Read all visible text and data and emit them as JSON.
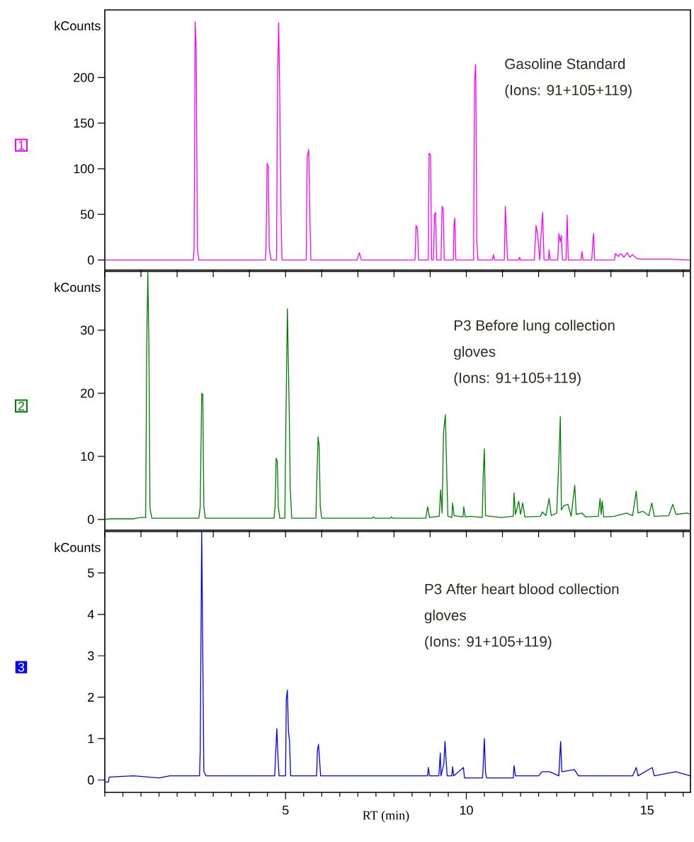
{
  "chart_data": [
    {
      "type": "line",
      "subtitle": "1",
      "ylabel": "kCounts",
      "annotations": [
        "Gasoline Standard",
        "(Ions: 91+105+119)"
      ],
      "xlim": [
        0,
        16.2
      ],
      "ylim": [
        -11,
        274
      ],
      "yticks": [
        0,
        50,
        100,
        150,
        200
      ],
      "tick_labels": "y",
      "series": [
        {
          "color": "#ff00ff",
          "x": [
            0,
            2.45,
            2.47,
            2.5,
            2.53,
            2.56,
            2.6,
            4.44,
            4.46,
            4.49,
            4.52,
            4.55,
            4.6,
            4.75,
            4.78,
            4.81,
            4.84,
            4.87,
            4.9,
            5.57,
            5.6,
            5.64,
            5.67,
            5.7,
            6.98,
            7.04,
            7.1,
            8.58,
            8.61,
            8.65,
            8.68,
            8.95,
            8.97,
            9.01,
            9.04,
            9.09,
            9.12,
            9.15,
            9.18,
            9.3,
            9.33,
            9.36,
            9.39,
            9.64,
            9.66,
            9.68,
            9.71,
            10.2,
            10.23,
            10.26,
            10.29,
            10.32,
            10.72,
            10.75,
            10.78,
            11.05,
            11.08,
            11.11,
            11.14,
            11.45,
            11.47,
            11.5,
            11.88,
            11.93,
            11.97,
            12.03,
            12.06,
            12.11,
            12.15,
            12.27,
            12.29,
            12.32,
            12.53,
            12.56,
            12.6,
            12.63,
            12.66,
            12.76,
            12.79,
            12.82,
            13.17,
            13.2,
            13.23,
            13.47,
            13.5,
            13.52,
            13.55,
            14.1,
            14.12,
            14.2,
            14.28,
            14.36,
            14.45,
            14.52,
            14.6,
            14.7,
            14.8,
            15.2,
            15.6,
            16.2
          ],
          "values": [
            0,
            0,
            13,
            261,
            227,
            13,
            0,
            0,
            13,
            106,
            103,
            13,
            0,
            0,
            202,
            260,
            178,
            61,
            0,
            0,
            113,
            121,
            55,
            0,
            0,
            8,
            0,
            0,
            38,
            34,
            0,
            0,
            117,
            115,
            0,
            0,
            50,
            52,
            0,
            0,
            59,
            56,
            0,
            0,
            38,
            46,
            0,
            0,
            198,
            214,
            20,
            0,
            0,
            6,
            0,
            0,
            59,
            29,
            0,
            0,
            3,
            0,
            0,
            38,
            29,
            0,
            23,
            52,
            0,
            0,
            11,
            0,
            0,
            29,
            20,
            27,
            0,
            0,
            49,
            0,
            0,
            9,
            0,
            0,
            20,
            29,
            0,
            0,
            7,
            4,
            7,
            3,
            8,
            3,
            6,
            2,
            1,
            1,
            1,
            0
          ]
        }
      ]
    },
    {
      "type": "line",
      "subtitle": "2",
      "ylabel": "kCounts",
      "annotations": [
        "P3 Before lung collection",
        "gloves",
        "(Ions: 91+105+119)"
      ],
      "xlim": [
        0,
        16.2
      ],
      "ylim": [
        -1.7,
        39.3
      ],
      "yticks": [
        0,
        10,
        20,
        30
      ],
      "tick_labels": "y",
      "series": [
        {
          "color": "#008000",
          "x": [
            0,
            0.15,
            0.8,
            1.0,
            1.13,
            1.16,
            1.19,
            1.22,
            1.25,
            1.3,
            2.6,
            2.64,
            2.68,
            2.71,
            2.74,
            2.78,
            4.68,
            4.71,
            4.74,
            4.77,
            4.8,
            4.84,
            4.98,
            5.01,
            5.05,
            5.1,
            5.13,
            5.17,
            5.84,
            5.87,
            5.9,
            5.93,
            5.96,
            6.0,
            7.4,
            7.43,
            7.47,
            7.9,
            7.93,
            7.96,
            8.88,
            8.93,
            8.98,
            9.25,
            9.29,
            9.33,
            9.37,
            9.42,
            9.45,
            9.49,
            9.6,
            9.62,
            9.66,
            9.91,
            9.93,
            9.97,
            10.1,
            10.44,
            10.47,
            10.5,
            10.53,
            10.96,
            11.3,
            11.32,
            11.36,
            11.45,
            11.5,
            11.56,
            11.62,
            12.05,
            12.1,
            12.2,
            12.29,
            12.35,
            12.5,
            12.57,
            12.6,
            12.63,
            12.7,
            12.81,
            12.9,
            13.0,
            13.04,
            13.2,
            13.3,
            13.65,
            13.7,
            13.73,
            13.76,
            13.8,
            14.1,
            14.43,
            14.6,
            14.7,
            14.75,
            14.88,
            15.05,
            15.13,
            15.2,
            15.6,
            15.71,
            15.8,
            16.11,
            16.2
          ],
          "values": [
            0,
            0.1,
            0.1,
            0.3,
            0.3,
            27.5,
            39.2,
            27.5,
            1.8,
            0.2,
            0.2,
            2,
            20,
            19.8,
            2,
            0.2,
            0.2,
            2,
            9.7,
            9.2,
            2,
            0.2,
            0.2,
            15.7,
            33.4,
            17.6,
            4.9,
            0.2,
            0.2,
            7.3,
            13.1,
            11.5,
            2,
            0.2,
            0.2,
            0.4,
            0.2,
            0.2,
            0.4,
            0.2,
            0.2,
            2.0,
            0.3,
            0.5,
            4.7,
            1,
            13.8,
            16.6,
            9.4,
            0.5,
            0.3,
            2.6,
            0.6,
            0.4,
            2.0,
            0.4,
            0.5,
            0.3,
            7.5,
            11.2,
            0.6,
            0.3,
            0.5,
            4.2,
            0.8,
            2.9,
            0.8,
            2.6,
            0.4,
            0.5,
            1.2,
            0.6,
            3.3,
            0.6,
            1,
            11,
            16.3,
            1.5,
            2.2,
            2.4,
            0.5,
            5.4,
            0.8,
            1.0,
            0.4,
            0.5,
            3.3,
            0.8,
            2.9,
            0.4,
            0.5,
            1.0,
            0.6,
            4.5,
            1.0,
            1.3,
            0.6,
            2.6,
            0.5,
            0.6,
            2.4,
            0.8,
            1.0,
            0.8
          ]
        }
      ]
    },
    {
      "type": "line",
      "subtitle": "3",
      "ylabel": "kCounts",
      "xlabel": "RT (min)",
      "annotations": [
        "P3 After heart blood collection",
        "gloves",
        "(Ions: 91+105+119)"
      ],
      "xlim": [
        0,
        16.2
      ],
      "ylim": [
        -0.3,
        6.0
      ],
      "yticks": [
        0,
        1,
        2,
        3,
        4,
        5
      ],
      "xticks": [
        {
          "value": 0,
          "label": null
        },
        {
          "value": 0.5,
          "label": null
        },
        {
          "value": 1,
          "label": null
        },
        {
          "value": 1.5,
          "label": null
        },
        {
          "value": 2,
          "label": null
        },
        {
          "value": 2.5,
          "label": null
        },
        {
          "value": 3,
          "label": null
        },
        {
          "value": 3.5,
          "label": null
        },
        {
          "value": 4,
          "label": null
        },
        {
          "value": 4.5,
          "label": null
        },
        5,
        {
          "value": 5.5,
          "label": null
        },
        {
          "value": 6,
          "label": null
        },
        {
          "value": 6.5,
          "label": null
        },
        {
          "value": 7,
          "label": null
        },
        {
          "value": 7.5,
          "label": null
        },
        {
          "value": 8,
          "label": null
        },
        {
          "value": 8.5,
          "label": null
        },
        {
          "value": 9,
          "label": null
        },
        {
          "value": 9.5,
          "label": null
        },
        10,
        {
          "value": 10.5,
          "label": null
        },
        {
          "value": 11,
          "label": null
        },
        {
          "value": 11.5,
          "label": null
        },
        {
          "value": 12,
          "label": null
        },
        {
          "value": 12.5,
          "label": null
        },
        {
          "value": 13,
          "label": null
        },
        {
          "value": 13.5,
          "label": null
        },
        {
          "value": 14,
          "label": null
        },
        {
          "value": 14.5,
          "label": null
        },
        15,
        {
          "value": 15.5,
          "label": null
        },
        {
          "value": 16,
          "label": null
        }
      ],
      "series": [
        {
          "color": "#0000ff",
          "x": [
            0,
            0.1,
            0.12,
            0.8,
            1.5,
            1.8,
            2.62,
            2.64,
            2.68,
            2.71,
            2.74,
            2.8,
            4.7,
            4.72,
            4.76,
            4.79,
            4.82,
            5.0,
            5.02,
            5.05,
            5.08,
            5.11,
            5.14,
            5.86,
            5.88,
            5.91,
            5.94,
            5.97,
            7.5,
            8.93,
            8.95,
            8.98,
            9.24,
            9.28,
            9.3,
            9.38,
            9.41,
            9.44,
            9.47,
            9.6,
            9.62,
            9.65,
            9.92,
            9.95,
            10.45,
            10.48,
            10.5,
            10.53,
            10.56,
            11.3,
            11.32,
            11.36,
            12.0,
            12.1,
            12.3,
            12.56,
            12.59,
            12.61,
            12.64,
            12.99,
            13.1,
            14.6,
            14.7,
            14.75,
            15.14,
            15.2,
            15.79,
            16.2
          ],
          "values": [
            -0.05,
            -0.05,
            0.07,
            0.1,
            0.05,
            0.1,
            0.1,
            0.73,
            6.0,
            3.05,
            0.2,
            0.1,
            0.1,
            0.54,
            1.24,
            0.54,
            0.1,
            0.1,
            1.93,
            2.17,
            1.17,
            0.94,
            0.1,
            0.1,
            0.7,
            0.86,
            0.5,
            0.1,
            0.1,
            0.1,
            0.3,
            0.1,
            0.1,
            0.65,
            0.1,
            0.4,
            0.93,
            0.5,
            0.1,
            0.1,
            0.32,
            0.1,
            0.3,
            0.05,
            0.05,
            0.6,
            1.0,
            0.2,
            0.05,
            0.05,
            0.35,
            0.1,
            0.1,
            0.2,
            0.2,
            0.1,
            0.65,
            0.93,
            0.2,
            0.25,
            0.1,
            0.1,
            0.3,
            0.1,
            0.3,
            0.1,
            0.2,
            0.1
          ]
        }
      ]
    }
  ]
}
